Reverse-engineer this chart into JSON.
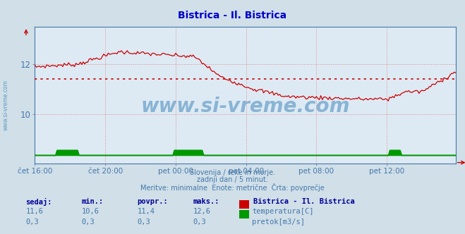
{
  "title": "Bistrica - Il. Bistrica",
  "title_color": "#0000cc",
  "bg_color": "#d0dfe8",
  "plot_bg_color": "#ddeaf4",
  "grid_color": "#dd8888",
  "xlabel_ticks": [
    "čet 16:00",
    "čet 20:00",
    "pet 00:00",
    "pet 04:00",
    "pet 08:00",
    "pet 12:00"
  ],
  "yticks": [
    10,
    12
  ],
  "ylim": [
    8.0,
    13.5
  ],
  "xlim": [
    0,
    287
  ],
  "temp_color": "#cc0000",
  "flow_color": "#009900",
  "temp_avg": 11.4,
  "watermark_text": "www.si-vreme.com",
  "watermark_color": "#4488bb",
  "subtitle1": "Slovenija / reke in morje.",
  "subtitle2": "zadnji dan / 5 minut.",
  "subtitle3": "Meritve: minimalne  Enote: metrične  Črta: povprečje",
  "subtitle_color": "#4477aa",
  "legend_title": "Bistrica - Il. Bistrica",
  "legend_title_color": "#000099",
  "label_temp": "temperatura[C]",
  "label_flow": "pretok[m3/s]",
  "table_headers": [
    "sedaj:",
    "min.:",
    "povpr.:",
    "maks.:"
  ],
  "table_temp": [
    "11,6",
    "10,6",
    "11,4",
    "12,6"
  ],
  "table_flow": [
    "0,3",
    "0,3",
    "0,3",
    "0,3"
  ],
  "table_color": "#4477aa",
  "table_bold_color": "#000099",
  "tick_color": "#4477aa",
  "left_label": "www.si-vreme.com",
  "arrow_color": "#cc0000",
  "n_points": 288,
  "flow_bottom_y": 8.35,
  "flow_spike_y": 8.55
}
